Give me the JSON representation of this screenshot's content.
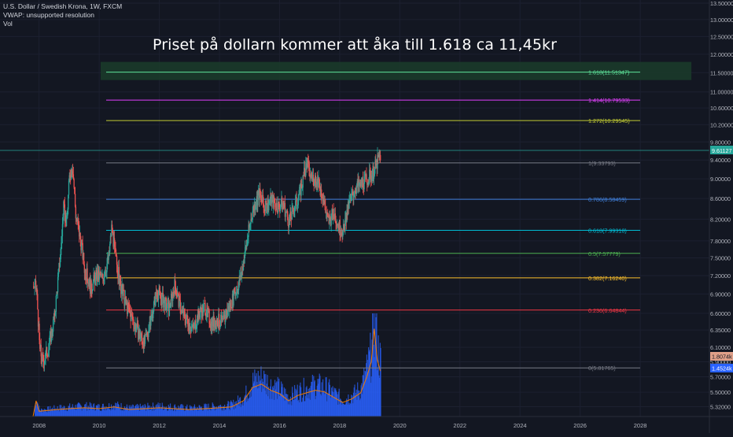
{
  "header": {
    "symbol_line": "U.S. Dollar / Swedish Krona, 1W, FXCM",
    "vwap_line": "VWAP: unsupported resolution",
    "vol_line": "Vol"
  },
  "annotation": {
    "headline": "Priset på dollarn kommer att åka till 1.618 ca 11,45kr"
  },
  "colors": {
    "background": "#131722",
    "up": "#26a69a",
    "down": "#ef5350",
    "volume": "#2962ff",
    "volume_ma": "#f57c00",
    "highlight_band": "#1b3a2a"
  },
  "chart_data": {
    "type": "candlestick",
    "x_axis": {
      "ticks": [
        "2008",
        "2010",
        "2012",
        "2014",
        "2016",
        "2018",
        "2020",
        "2022",
        "2024",
        "2026",
        "2028"
      ],
      "range": [
        2006.7,
        2030.3
      ]
    },
    "y_axis": {
      "scale": "log",
      "range": [
        5.2,
        13.6
      ],
      "ticks": [
        "13.50000",
        "13.00000",
        "12.50000",
        "12.00000",
        "11.50000",
        "11.00000",
        "10.60000",
        "10.20000",
        "9.80000",
        "9.40000",
        "9.00000",
        "8.60000",
        "8.20000",
        "7.80000",
        "7.50000",
        "7.20000",
        "6.90000",
        "6.60000",
        "6.35000",
        "6.10000",
        "5.90000",
        "5.70000",
        "5.50000",
        "5.32000"
      ]
    },
    "price_path": [
      [
        2007.8,
        7.02
      ],
      [
        2007.9,
        6.98
      ],
      [
        2008.0,
        6.1
      ],
      [
        2008.1,
        5.9
      ],
      [
        2008.3,
        6.1
      ],
      [
        2008.5,
        6.55
      ],
      [
        2008.7,
        7.6
      ],
      [
        2008.8,
        8.4
      ],
      [
        2008.9,
        8.1
      ],
      [
        2009.0,
        9.1
      ],
      [
        2009.1,
        9.3
      ],
      [
        2009.2,
        8.3
      ],
      [
        2009.4,
        7.7
      ],
      [
        2009.5,
        7.3
      ],
      [
        2009.7,
        7.0
      ],
      [
        2009.9,
        7.2
      ],
      [
        2010.1,
        7.15
      ],
      [
        2010.3,
        7.5
      ],
      [
        2010.4,
        8.05
      ],
      [
        2010.5,
        7.6
      ],
      [
        2010.7,
        7.0
      ],
      [
        2010.9,
        6.7
      ],
      [
        2011.1,
        6.5
      ],
      [
        2011.3,
        6.3
      ],
      [
        2011.5,
        6.15
      ],
      [
        2011.7,
        6.5
      ],
      [
        2011.9,
        6.95
      ],
      [
        2012.1,
        6.8
      ],
      [
        2012.3,
        6.65
      ],
      [
        2012.5,
        7.05
      ],
      [
        2012.7,
        6.65
      ],
      [
        2012.9,
        6.5
      ],
      [
        2013.1,
        6.35
      ],
      [
        2013.3,
        6.6
      ],
      [
        2013.5,
        6.7
      ],
      [
        2013.7,
        6.45
      ],
      [
        2013.9,
        6.5
      ],
      [
        2014.1,
        6.45
      ],
      [
        2014.3,
        6.7
      ],
      [
        2014.5,
        6.9
      ],
      [
        2014.7,
        7.2
      ],
      [
        2014.9,
        7.8
      ],
      [
        2015.1,
        8.4
      ],
      [
        2015.3,
        8.7
      ],
      [
        2015.5,
        8.4
      ],
      [
        2015.7,
        8.6
      ],
      [
        2015.9,
        8.45
      ],
      [
        2016.1,
        8.5
      ],
      [
        2016.3,
        8.15
      ],
      [
        2016.5,
        8.45
      ],
      [
        2016.7,
        8.8
      ],
      [
        2016.9,
        9.35
      ],
      [
        2017.0,
        9.05
      ],
      [
        2017.2,
        9.0
      ],
      [
        2017.4,
        8.7
      ],
      [
        2017.6,
        8.15
      ],
      [
        2017.8,
        8.3
      ],
      [
        2017.95,
        8.1
      ],
      [
        2018.1,
        7.95
      ],
      [
        2018.3,
        8.5
      ],
      [
        2018.5,
        8.8
      ],
      [
        2018.7,
        8.9
      ],
      [
        2018.9,
        9.0
      ],
      [
        2019.1,
        9.15
      ],
      [
        2019.2,
        9.3
      ],
      [
        2019.3,
        9.45
      ],
      [
        2019.35,
        9.52
      ]
    ],
    "last_price": "9.61127",
    "fibonacci": [
      {
        "ratio": "0",
        "value": 5.81765,
        "label": "0(5.81765)",
        "color": "#787b86"
      },
      {
        "ratio": "0.236",
        "value": 6.64844,
        "label": "0.236(6.64844)",
        "color": "#f23645"
      },
      {
        "ratio": "0.382",
        "value": 7.1624,
        "label": "0.382(7.16240)",
        "color": "#fbc02d"
      },
      {
        "ratio": "0.5",
        "value": 7.57779,
        "label": "0.5(7.57779)",
        "color": "#4caf50"
      },
      {
        "ratio": "0.618",
        "value": 7.99318,
        "label": "0.618(7.99318)",
        "color": "#00bcd4"
      },
      {
        "ratio": "0.786",
        "value": 8.58459,
        "label": "0.786(8.58459)",
        "color": "#3f7ed8"
      },
      {
        "ratio": "1",
        "value": 9.33793,
        "label": "1(9.33793)",
        "color": "#787b86"
      },
      {
        "ratio": "1.272",
        "value": 10.29545,
        "label": "1.272(10.29545)",
        "color": "#c0ca33"
      },
      {
        "ratio": "1.414",
        "value": 10.79533,
        "label": "1.414(10.79533)",
        "color": "#e040fb"
      },
      {
        "ratio": "1.618",
        "value": 11.51347,
        "label": "1.618(11.51347)",
        "color": "#5ee39a"
      }
    ],
    "volume": {
      "labels": [
        "1.8074k",
        "1.4524k"
      ],
      "path": [
        [
          2007.8,
          0.0
        ],
        [
          2007.9,
          0.18
        ],
        [
          2008.0,
          0.06
        ],
        [
          2008.3,
          0.07
        ],
        [
          2008.6,
          0.08
        ],
        [
          2009.0,
          0.09
        ],
        [
          2009.5,
          0.1
        ],
        [
          2010.0,
          0.09
        ],
        [
          2010.5,
          0.11
        ],
        [
          2011.0,
          0.08
        ],
        [
          2011.5,
          0.09
        ],
        [
          2012.0,
          0.1
        ],
        [
          2012.5,
          0.09
        ],
        [
          2013.0,
          0.08
        ],
        [
          2013.5,
          0.09
        ],
        [
          2014.0,
          0.1
        ],
        [
          2014.4,
          0.11
        ],
        [
          2014.8,
          0.18
        ],
        [
          2015.1,
          0.33
        ],
        [
          2015.4,
          0.37
        ],
        [
          2015.7,
          0.3
        ],
        [
          2016.0,
          0.26
        ],
        [
          2016.3,
          0.18
        ],
        [
          2016.6,
          0.24
        ],
        [
          2016.9,
          0.27
        ],
        [
          2017.2,
          0.3
        ],
        [
          2017.5,
          0.28
        ],
        [
          2017.8,
          0.22
        ],
        [
          2018.1,
          0.16
        ],
        [
          2018.4,
          0.2
        ],
        [
          2018.7,
          0.27
        ],
        [
          2018.9,
          0.45
        ],
        [
          2019.05,
          0.62
        ],
        [
          2019.15,
          1.0
        ],
        [
          2019.25,
          0.65
        ],
        [
          2019.35,
          0.52
        ]
      ]
    }
  }
}
